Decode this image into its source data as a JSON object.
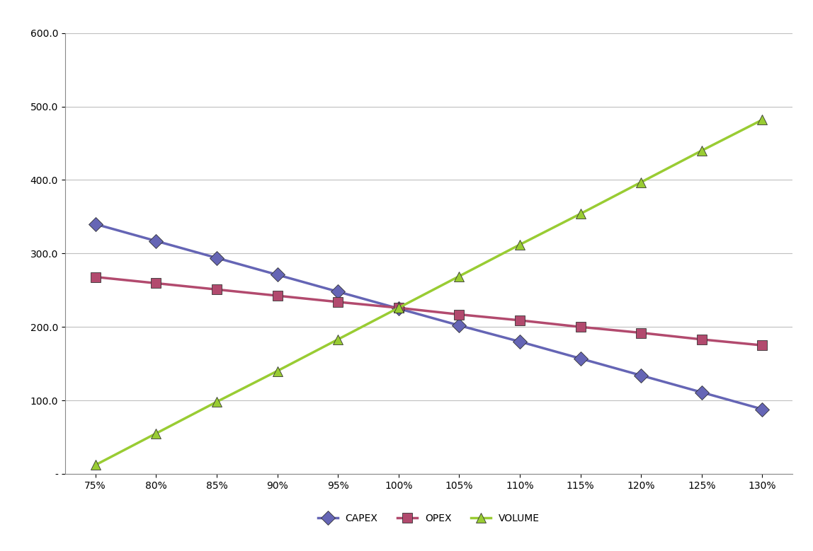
{
  "chart_data": {
    "type": "line",
    "categories": [
      "75%",
      "80%",
      "85%",
      "90%",
      "95%",
      "100%",
      "105%",
      "110%",
      "115%",
      "120%",
      "125%",
      "130%"
    ],
    "series": [
      {
        "name": "CAPEX",
        "color": "#6565b5",
        "marker": "diamond",
        "line_style": "solid",
        "values": [
          340,
          317,
          294,
          271,
          248,
          225,
          202,
          180,
          157,
          134,
          111,
          88
        ]
      },
      {
        "name": "OPEX",
        "color": "#b24a6e",
        "marker": "square",
        "line_style": "solid",
        "values": [
          268,
          259.5,
          251,
          242.5,
          234,
          226,
          217,
          209,
          200,
          192,
          183,
          175
        ]
      },
      {
        "name": "VOLUME",
        "color": "#99cc33",
        "marker": "triangle",
        "line_style": "solid",
        "values": [
          12,
          55,
          98,
          140,
          183,
          226,
          269,
          312,
          354,
          397,
          440,
          482
        ]
      }
    ],
    "ylim": [
      0,
      600
    ],
    "yticks": [
      {
        "value": 0,
        "label": "-"
      },
      {
        "value": 100,
        "label": "100.0"
      },
      {
        "value": 200,
        "label": "200.0"
      },
      {
        "value": 300,
        "label": "300.0"
      },
      {
        "value": 400,
        "label": "400.0"
      },
      {
        "value": 500,
        "label": "500.0"
      },
      {
        "value": 600,
        "label": "600.0"
      }
    ],
    "grid": true,
    "legend": "lower center"
  }
}
